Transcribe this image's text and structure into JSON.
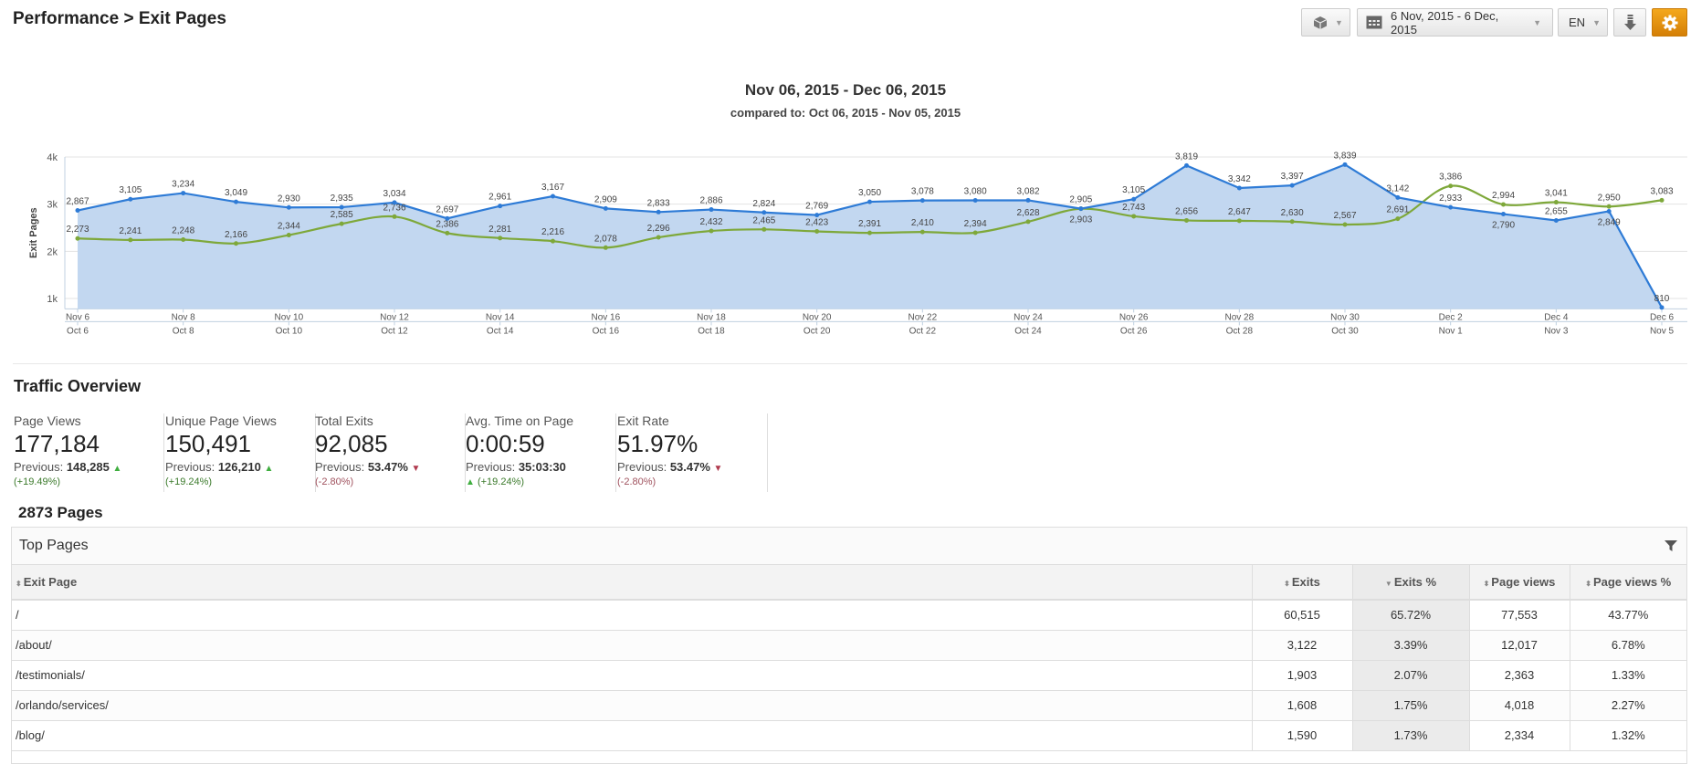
{
  "header": {
    "title": "Performance > Exit Pages",
    "date_range": "6 Nov, 2015 - 6 Dec, 2015",
    "language": "EN",
    "icons": [
      "cube-icon",
      "calendar-icon",
      "download-icon",
      "gear-icon"
    ],
    "accent": "#e08e0b"
  },
  "chart_data": {
    "type": "area",
    "title": "Nov 06, 2015 - Dec 06, 2015",
    "subtitle": "compared to: Oct 06, 2015 - Nov 05, 2015",
    "ylabel": "Exit Pages",
    "yticks": [
      "1k",
      "2k",
      "3k",
      "4k"
    ],
    "ylim": [
      780,
      4000
    ],
    "grid": true,
    "xticks_current": [
      "Nov 6",
      "Nov 8",
      "Nov 10",
      "Nov 12",
      "Nov 14",
      "Nov 16",
      "Nov 18",
      "Nov 20",
      "Nov 22",
      "Nov 24",
      "Nov 26",
      "Nov 28",
      "Nov 30",
      "Dec 2",
      "Dec 4",
      "Dec 6"
    ],
    "xticks_previous": [
      "Oct 6",
      "Oct 8",
      "Oct 10",
      "Oct 12",
      "Oct 14",
      "Oct 16",
      "Oct 18",
      "Oct 20",
      "Oct 22",
      "Oct 24",
      "Oct 26",
      "Oct 28",
      "Oct 30",
      "Nov 1",
      "Nov 3",
      "Nov 5"
    ],
    "series": [
      {
        "color": "#2e7bd6",
        "fill": "#c2d7f0",
        "values": [
          2867,
          3105,
          3234,
          3049,
          2930,
          2935,
          3034,
          2697,
          2961,
          3167,
          2909,
          2833,
          2886,
          2824,
          2769,
          3050,
          3078,
          3080,
          3082,
          2905,
          3105,
          3819,
          3342,
          3397,
          3839,
          3142,
          2933,
          2790,
          2655,
          2849,
          810
        ]
      },
      {
        "color": "#7ea83a",
        "values": [
          2273,
          2241,
          2248,
          2166,
          2344,
          2585,
          2736,
          2386,
          2281,
          2216,
          2078,
          2296,
          2432,
          2465,
          2423,
          2391,
          2410,
          2394,
          2628,
          2903,
          2743,
          2656,
          2647,
          2630,
          2567,
          2691,
          3386,
          2994,
          3041,
          2950,
          3083
        ]
      }
    ]
  },
  "overview": {
    "title": "Traffic Overview",
    "metrics": [
      {
        "label": "Page Views",
        "value": "177,184",
        "prev_label": "Previous:",
        "prev": "148,285",
        "change": "(+19.49%)",
        "dir": "up"
      },
      {
        "label": "Unique Page Views",
        "value": "150,491",
        "prev_label": "Previous:",
        "prev": "126,210",
        "change": "(+19.24%)",
        "dir": "up"
      },
      {
        "label": "Total Exits",
        "value": "92,085",
        "prev_label": "Previous:",
        "prev": "53.47%",
        "change": "(-2.80%)",
        "dir": "down"
      },
      {
        "label": "Avg. Time on Page",
        "value": "0:00:59",
        "prev_label": "Previous:",
        "prev": "35:03:30",
        "change": "(+19.24%)",
        "dir": "up"
      },
      {
        "label": "Exit Rate",
        "value": "51.97%",
        "prev_label": "Previous:",
        "prev": "53.47%",
        "change": "(-2.80%)",
        "dir": "down"
      }
    ]
  },
  "pages": {
    "count": "2873 Pages",
    "panel_title": "Top Pages",
    "columns": [
      "Exit Page",
      "Exits",
      "Exits %",
      "Page views",
      "Page views %"
    ],
    "rows": [
      [
        "/",
        "60,515",
        "65.72%",
        "77,553",
        "43.77%"
      ],
      [
        "/about/",
        "3,122",
        "3.39%",
        "12,017",
        "6.78%"
      ],
      [
        "/testimonials/",
        "1,903",
        "2.07%",
        "2,363",
        "1.33%"
      ],
      [
        "/orlando/services/",
        "1,608",
        "1.75%",
        "4,018",
        "2.27%"
      ],
      [
        "/blog/",
        "1,590",
        "1.73%",
        "2,334",
        "1.32%"
      ]
    ]
  }
}
